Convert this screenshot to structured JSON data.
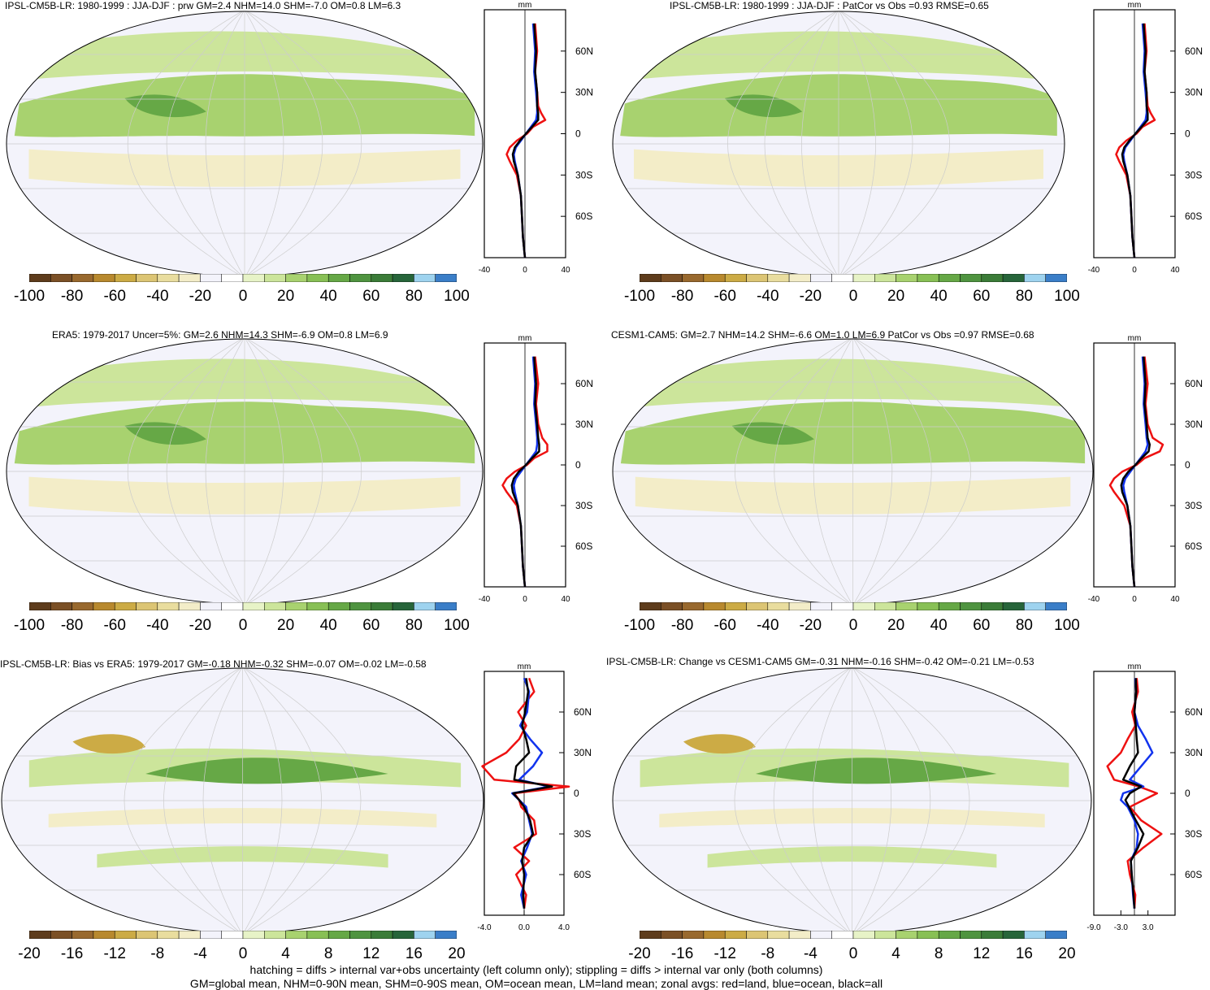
{
  "colors": {
    "palette": [
      "#5e3c1c",
      "#7b5026",
      "#99692e",
      "#b8892e",
      "#ccab45",
      "#dcc574",
      "#e9dd9e",
      "#f3edc8",
      "#f3f3fb",
      "#ffffff",
      "#e7f3c7",
      "#cce59b",
      "#a8d26f",
      "#88c055",
      "#66a846",
      "#4f9440",
      "#3b7c38",
      "#27653a",
      "#9ed3ef",
      "#3a7ec8"
    ],
    "land": "#e8c0c0",
    "zonal_land": "#ee1111",
    "zonal_ocean": "#1133ee",
    "zonal_all": "#000000"
  },
  "panels": [
    {
      "id": "p1",
      "title": "IPSL-CM5B-LR: 1980-1999 : JJA-DJF : prw GM=2.4 NHM=14.0 SHM=-7.0 OM=0.8 LM=6.3",
      "colorbar_labels": [
        "-100",
        "-80",
        "-60",
        "-40",
        "-20",
        "0",
        "20",
        "40",
        "60",
        "80",
        "100"
      ],
      "zonal_unit": "mm",
      "zonal_xticks": [
        "-40",
        "0",
        "40"
      ],
      "lat_labels": [
        "60N",
        "30N",
        "0",
        "30S",
        "60S"
      ]
    },
    {
      "id": "p2",
      "title": "IPSL-CM5B-LR: 1980-1999 : JJA-DJF : PatCor vs Obs =0.93 RMSE=0.65",
      "colorbar_labels": [
        "-100",
        "-80",
        "-60",
        "-40",
        "-20",
        "0",
        "20",
        "40",
        "60",
        "80",
        "100"
      ],
      "zonal_unit": "mm",
      "zonal_xticks": [
        "-40",
        "0",
        "40"
      ],
      "lat_labels": [
        "60N",
        "30N",
        "0",
        "30S",
        "60S"
      ]
    },
    {
      "id": "p3",
      "title": "ERA5: 1979-2017 Uncer=5%: GM=2.6 NHM=14.3 SHM=-6.9 OM=0.8 LM=6.9",
      "colorbar_labels": [
        "-100",
        "-80",
        "-60",
        "-40",
        "-20",
        "0",
        "20",
        "40",
        "60",
        "80",
        "100"
      ],
      "zonal_unit": "mm",
      "zonal_xticks": [
        "-40",
        "0",
        "40"
      ],
      "lat_labels": [
        "60N",
        "30N",
        "0",
        "30S",
        "60S"
      ]
    },
    {
      "id": "p4",
      "title": "CESM1-CAM5: GM=2.7 NHM=14.2 SHM=-6.6 OM=1.0 LM=6.9 PatCor vs Obs =0.97 RMSE=0.68",
      "colorbar_labels": [
        "-100",
        "-80",
        "-60",
        "-40",
        "-20",
        "0",
        "20",
        "40",
        "60",
        "80",
        "100"
      ],
      "zonal_unit": "mm",
      "zonal_xticks": [
        "-40",
        "0",
        "40"
      ],
      "lat_labels": [
        "60N",
        "30N",
        "0",
        "30S",
        "60S"
      ]
    },
    {
      "id": "p5",
      "title": "IPSL-CM5B-LR: Bias vs ERA5: 1979-2017 GM=-0.18 NHM=-0.32 SHM=-0.07 OM=-0.02 LM=-0.58",
      "colorbar_labels": [
        "-20",
        "-16",
        "-12",
        "-8",
        "-4",
        "0",
        "4",
        "8",
        "12",
        "16",
        "20"
      ],
      "zonal_unit": "mm",
      "zonal_xticks": [
        "-4.0",
        "0.0",
        "4.0"
      ],
      "lat_labels": [
        "60N",
        "30N",
        "0",
        "30S",
        "60S"
      ]
    },
    {
      "id": "p6",
      "title": "IPSL-CM5B-LR: Change vs CESM1-CAM5 GM=-0.31 NHM=-0.16 SHM=-0.42 OM=-0.21 LM=-0.53",
      "colorbar_labels": [
        "-20",
        "-16",
        "-12",
        "-8",
        "-4",
        "0",
        "4",
        "8",
        "12",
        "16",
        "20"
      ],
      "zonal_unit": "mm",
      "zonal_xticks": [
        "-9.0",
        "-3.0",
        "3.0"
      ],
      "lat_labels": [
        "60N",
        "30N",
        "0",
        "30S",
        "60S"
      ]
    }
  ],
  "footer": {
    "line1": "hatching = diffs > internal var+obs uncertainty (left column only); stippling = diffs > internal var only (both columns)",
    "line2": "GM=global mean, NHM=0-90N mean, SHM=0-90S mean, OM=ocean mean, LM=land mean; zonal avgs: red=land, blue=ocean, black=all"
  },
  "chart_data": [
    {
      "type": "heatmap",
      "title": "IPSL-CM5B-LR: 1980-1999 : JJA-DJF : prw GM=2.4 NHM=14.0 SHM=-7.0 OM=0.8 LM=6.3",
      "colorbar_range": [
        -100,
        100
      ],
      "colorbar_ticks": [
        -100,
        -80,
        -60,
        -40,
        -20,
        0,
        20,
        40,
        60,
        80,
        100
      ],
      "zonal": {
        "unit": "mm",
        "xlim": [
          -40,
          40
        ],
        "lat": [
          80,
          60,
          45,
          30,
          20,
          15,
          10,
          5,
          0,
          -5,
          -10,
          -15,
          -20,
          -30,
          -45,
          -60,
          -75,
          -90
        ],
        "series": [
          {
            "name": "land",
            "values": [
              10,
              12,
              10,
              12,
              13,
              16,
              20,
              8,
              2,
              -8,
              -15,
              -18,
              -15,
              -8,
              -4,
              -3,
              -2,
              0
            ]
          },
          {
            "name": "ocean",
            "values": [
              8,
              10,
              9,
              11,
              12,
              12,
              11,
              6,
              1,
              -4,
              -9,
              -11,
              -10,
              -7,
              -4,
              -3,
              -2,
              0
            ]
          },
          {
            "name": "all",
            "values": [
              9,
              11,
              10,
              12,
              12,
              13,
              13,
              7,
              1,
              -5,
              -10,
              -12,
              -11,
              -7,
              -4,
              -3,
              -2,
              0
            ]
          }
        ]
      }
    },
    {
      "type": "heatmap",
      "title": "IPSL-CM5B-LR: 1980-1999 : JJA-DJF : PatCor vs Obs =0.93 RMSE=0.65",
      "colorbar_range": [
        -100,
        100
      ],
      "colorbar_ticks": [
        -100,
        -80,
        -60,
        -40,
        -20,
        0,
        20,
        40,
        60,
        80,
        100
      ],
      "zonal": {
        "unit": "mm",
        "xlim": [
          -40,
          40
        ],
        "lat": [
          80,
          60,
          45,
          30,
          20,
          15,
          10,
          5,
          0,
          -5,
          -10,
          -15,
          -20,
          -30,
          -45,
          -60,
          -75,
          -90
        ],
        "series": [
          {
            "name": "land",
            "values": [
              10,
              12,
              10,
              12,
              13,
              16,
              20,
              8,
              2,
              -8,
              -15,
              -18,
              -15,
              -8,
              -4,
              -3,
              -2,
              0
            ]
          },
          {
            "name": "ocean",
            "values": [
              8,
              10,
              9,
              11,
              12,
              12,
              11,
              6,
              1,
              -4,
              -9,
              -11,
              -10,
              -7,
              -4,
              -3,
              -2,
              0
            ]
          },
          {
            "name": "all",
            "values": [
              9,
              11,
              10,
              12,
              12,
              13,
              13,
              7,
              1,
              -5,
              -10,
              -12,
              -11,
              -7,
              -4,
              -3,
              -2,
              0
            ]
          }
        ]
      }
    },
    {
      "type": "heatmap",
      "title": "ERA5: 1979-2017 Uncer=5%: GM=2.6 NHM=14.3 SHM=-6.9 OM=0.8 LM=6.9",
      "colorbar_range": [
        -100,
        100
      ],
      "colorbar_ticks": [
        -100,
        -80,
        -60,
        -40,
        -20,
        0,
        20,
        40,
        60,
        80,
        100
      ],
      "zonal": {
        "unit": "mm",
        "xlim": [
          -40,
          40
        ],
        "lat": [
          80,
          60,
          45,
          30,
          20,
          15,
          10,
          5,
          0,
          -5,
          -10,
          -15,
          -20,
          -30,
          -45,
          -60,
          -75,
          -90
        ],
        "series": [
          {
            "name": "land",
            "values": [
              10,
              13,
              11,
              13,
              17,
              22,
              22,
              9,
              2,
              -10,
              -18,
              -22,
              -18,
              -8,
              -4,
              -3,
              -2,
              0
            ]
          },
          {
            "name": "ocean",
            "values": [
              8,
              10,
              9,
              11,
              12,
              12,
              11,
              6,
              1,
              -4,
              -9,
              -11,
              -10,
              -7,
              -4,
              -3,
              -2,
              0
            ]
          },
          {
            "name": "all",
            "values": [
              9,
              11,
              10,
              12,
              13,
              14,
              14,
              7,
              1,
              -6,
              -11,
              -13,
              -12,
              -7,
              -4,
              -3,
              -2,
              0
            ]
          }
        ]
      }
    },
    {
      "type": "heatmap",
      "title": "CESM1-CAM5: GM=2.7 NHM=14.2 SHM=-6.6 OM=1.0 LM=6.9 PatCor vs Obs =0.97 RMSE=0.68",
      "colorbar_range": [
        -100,
        100
      ],
      "colorbar_ticks": [
        -100,
        -80,
        -60,
        -40,
        -20,
        0,
        20,
        40,
        60,
        80,
        100
      ],
      "zonal": {
        "unit": "mm",
        "xlim": [
          -40,
          40
        ],
        "lat": [
          80,
          60,
          45,
          30,
          20,
          15,
          10,
          5,
          0,
          -5,
          -10,
          -15,
          -20,
          -30,
          -45,
          -60,
          -75,
          -90
        ],
        "series": [
          {
            "name": "land",
            "values": [
              10,
              13,
              11,
              13,
              18,
              28,
              25,
              10,
              2,
              -12,
              -20,
              -24,
              -20,
              -10,
              -4,
              -3,
              -2,
              0
            ]
          },
          {
            "name": "ocean",
            "values": [
              8,
              10,
              9,
              11,
              12,
              13,
              11,
              6,
              1,
              -4,
              -9,
              -11,
              -10,
              -7,
              -4,
              -3,
              -2,
              0
            ]
          },
          {
            "name": "all",
            "values": [
              9,
              11,
              10,
              12,
              13,
              15,
              14,
              7,
              1,
              -6,
              -11,
              -13,
              -12,
              -7,
              -4,
              -3,
              -2,
              0
            ]
          }
        ]
      }
    },
    {
      "type": "heatmap",
      "title": "IPSL-CM5B-LR: Bias vs ERA5: 1979-2017 GM=-0.18 NHM=-0.32 SHM=-0.07 OM=-0.02 LM=-0.58",
      "colorbar_range": [
        -20,
        20
      ],
      "colorbar_ticks": [
        -20,
        -16,
        -12,
        -8,
        -4,
        0,
        4,
        8,
        12,
        16,
        20
      ],
      "zonal": {
        "unit": "mm",
        "xlim": [
          -4,
          4
        ],
        "lat": [
          85,
          75,
          60,
          50,
          40,
          30,
          20,
          10,
          5,
          0,
          -5,
          -10,
          -20,
          -30,
          -40,
          -50,
          -60,
          -75,
          -85
        ],
        "series": [
          {
            "name": "land",
            "values": [
              0.5,
              1.0,
              -0.6,
              0.2,
              -0.5,
              -1.8,
              -4.2,
              -3.0,
              4.5,
              -1.0,
              -0.5,
              -0.3,
              1.0,
              1.2,
              -1.0,
              0.5,
              -0.8,
              0.2,
              0
            ]
          },
          {
            "name": "ocean",
            "values": [
              0.0,
              0.5,
              0.3,
              -0.4,
              0.6,
              1.8,
              0.9,
              -0.5,
              2.5,
              -1.2,
              -0.5,
              0.2,
              0.5,
              0.8,
              0.3,
              -0.3,
              0.2,
              -0.3,
              0
            ]
          },
          {
            "name": "all",
            "values": [
              0.2,
              0.4,
              0.1,
              -0.2,
              0.2,
              0.5,
              -0.8,
              -1.0,
              2.8,
              -1.1,
              -0.5,
              0.0,
              0.6,
              0.9,
              0.0,
              -0.2,
              0.0,
              -0.1,
              0
            ]
          }
        ]
      }
    },
    {
      "type": "heatmap",
      "title": "IPSL-CM5B-LR: Change vs CESM1-CAM5 GM=-0.31 NHM=-0.16 SHM=-0.42 OM=-0.21 LM=-0.53",
      "colorbar_range": [
        -20,
        20
      ],
      "colorbar_ticks": [
        -20,
        -16,
        -12,
        -8,
        -4,
        0,
        4,
        8,
        12,
        16,
        20
      ],
      "zonal": {
        "unit": "mm",
        "xlim": [
          -9,
          9
        ],
        "lat": [
          85,
          75,
          60,
          50,
          40,
          30,
          20,
          10,
          5,
          0,
          -5,
          -10,
          -20,
          -30,
          -40,
          -50,
          -60,
          -75,
          -85
        ],
        "series": [
          {
            "name": "land",
            "values": [
              0.5,
              0.8,
              -0.5,
              0.2,
              -1.5,
              -3.0,
              -6.0,
              -4.5,
              1.0,
              5.0,
              2.0,
              -1.0,
              1.5,
              6.0,
              2.0,
              -1.5,
              -1.0,
              0.2,
              0
            ]
          },
          {
            "name": "ocean",
            "values": [
              0.2,
              0.4,
              0.0,
              0.8,
              2.5,
              4.0,
              1.5,
              -1.0,
              2.0,
              -2.5,
              -3.0,
              -1.5,
              0.0,
              0.8,
              0.5,
              -0.8,
              -0.6,
              -0.3,
              0
            ]
          },
          {
            "name": "all",
            "values": [
              0.3,
              0.4,
              0.0,
              0.3,
              0.5,
              0.8,
              -1.0,
              -2.5,
              1.5,
              -1.0,
              -2.0,
              -1.2,
              0.3,
              2.0,
              0.8,
              -0.8,
              -0.6,
              -0.2,
              0
            ]
          }
        ]
      }
    }
  ]
}
